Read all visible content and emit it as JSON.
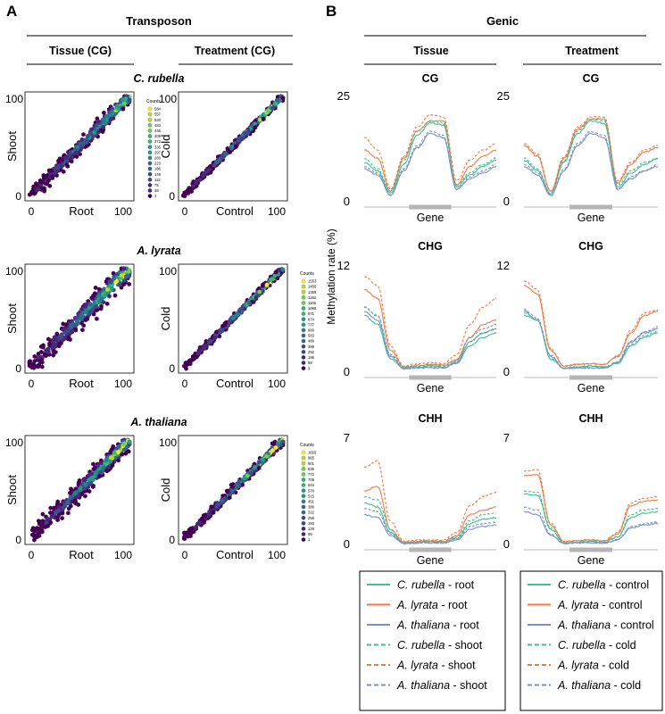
{
  "panel_a": {
    "letter": "A",
    "heading": "Transposon",
    "col_headers": [
      "Tissue (CG)",
      "Treatment (CG)"
    ],
    "species_titles": [
      "C. rubella",
      "A. lyrata",
      "A. thaliana"
    ],
    "tissue_x_label": "Root",
    "tissue_y_label": "Shoot",
    "treatment_x_label": "Control",
    "treatment_y_label": "Cold",
    "counts_title": "Counts"
  },
  "panel_b": {
    "letter": "B",
    "heading": "Genic",
    "col_headers": [
      "Tissue",
      "Treatment"
    ],
    "y_axis_label": "Methylation rate (%)",
    "gene_label": "Gene"
  },
  "legend_tissue": [
    {
      "species": "C. rubella",
      "suffix": " - root",
      "color": "#3dbf8f",
      "dashed": false
    },
    {
      "species": "A. lyrata",
      "suffix": " - root",
      "color": "#f07a45",
      "dashed": false
    },
    {
      "species": "A. thaliana",
      "suffix": " - root",
      "color": "#7890d0",
      "dashed": false
    },
    {
      "species": "C. rubella",
      "suffix": " - shoot",
      "color": "#3dbf8f",
      "dashed": true
    },
    {
      "species": "A. lyrata",
      "suffix": " - shoot",
      "color": "#f07a45",
      "dashed": true
    },
    {
      "species": "A. thaliana",
      "suffix": " - shoot",
      "color": "#7890d0",
      "dashed": true
    }
  ],
  "legend_treatment": [
    {
      "species": "C. rubella",
      "suffix": " - control",
      "color": "#3dbf8f",
      "dashed": false
    },
    {
      "species": "A. lyrata",
      "suffix": " - control",
      "color": "#f07a45",
      "dashed": false
    },
    {
      "species": "A. thaliana",
      "suffix": " - control",
      "color": "#7890d0",
      "dashed": false
    },
    {
      "species": "C. rubella",
      "suffix": " - cold",
      "color": "#3dbf8f",
      "dashed": true
    },
    {
      "species": "A. lyrata",
      "suffix": " - cold",
      "color": "#f07a45",
      "dashed": true
    },
    {
      "species": "A. thaliana",
      "suffix": " - cold",
      "color": "#7890d0",
      "dashed": true
    }
  ],
  "chart_data": [
    {
      "type": "heatmap",
      "subtype": "hexbin",
      "species": "C. rubella",
      "comparison": "tissue",
      "xlabel": "Root",
      "ylabel": "Shoot",
      "xlim": [
        0,
        100
      ],
      "ylim": [
        0,
        100
      ],
      "x_ticks": [
        0,
        100
      ],
      "y_ticks": [
        0,
        100
      ],
      "spread": 7,
      "counts_legend": [
        "584",
        "557",
        "520",
        "483",
        "446",
        "409",
        "372",
        "335",
        "297",
        "260",
        "223",
        "186",
        "149",
        "112",
        "75",
        "38",
        "1"
      ]
    },
    {
      "type": "heatmap",
      "subtype": "hexbin",
      "species": "C. rubella",
      "comparison": "treatment",
      "xlabel": "Control",
      "ylabel": "Cold",
      "xlim": [
        0,
        100
      ],
      "ylim": [
        0,
        100
      ],
      "x_ticks": [
        0,
        100
      ],
      "y_ticks": [
        0,
        100
      ],
      "spread": 3
    },
    {
      "type": "heatmap",
      "subtype": "hexbin",
      "species": "A. lyrata",
      "comparison": "tissue",
      "xlabel": "Root",
      "ylabel": "Shoot",
      "xlim": [
        0,
        100
      ],
      "ylim": [
        0,
        100
      ],
      "x_ticks": [
        0,
        100
      ],
      "y_ticks": [
        0,
        100
      ],
      "spread": 10
    },
    {
      "type": "heatmap",
      "subtype": "hexbin",
      "species": "A. lyrata",
      "comparison": "treatment",
      "xlabel": "Control",
      "ylabel": "Cold",
      "xlim": [
        0,
        100
      ],
      "ylim": [
        0,
        100
      ],
      "x_ticks": [
        0,
        100
      ],
      "y_ticks": [
        0,
        100
      ],
      "spread": 3,
      "counts_legend": [
        "1553",
        "1456",
        "1359",
        "1262",
        "1165",
        "1068",
        "971",
        "874",
        "777",
        "680",
        "583",
        "486",
        "389",
        "292",
        "195",
        "98",
        "1"
      ]
    },
    {
      "type": "heatmap",
      "subtype": "hexbin",
      "species": "A. thaliana",
      "comparison": "tissue",
      "xlabel": "Root",
      "ylabel": "Shoot",
      "xlim": [
        0,
        100
      ],
      "ylim": [
        0,
        100
      ],
      "x_ticks": [
        0,
        100
      ],
      "y_ticks": [
        0,
        100
      ],
      "spread": 8
    },
    {
      "type": "heatmap",
      "subtype": "hexbin",
      "species": "A. thaliana",
      "comparison": "treatment",
      "xlabel": "Control",
      "ylabel": "Cold",
      "xlim": [
        0,
        100
      ],
      "ylim": [
        0,
        100
      ],
      "x_ticks": [
        0,
        100
      ],
      "y_ticks": [
        0,
        100
      ],
      "spread": 4,
      "counts_legend": [
        "1029",
        "965",
        "901",
        "836",
        "772",
        "708",
        "644",
        "579",
        "515",
        "451",
        "386",
        "322",
        "258",
        "193",
        "129",
        "65",
        "1"
      ]
    },
    {
      "type": "line",
      "context": "CG",
      "comparison": "tissue",
      "ylim": [
        0,
        25
      ],
      "y_ticks": [
        0,
        25
      ],
      "x": [
        0,
        10,
        20,
        30,
        40,
        50,
        60,
        70,
        80,
        90,
        100
      ],
      "series": [
        {
          "name": "C. rubella - root",
          "color": "#3dbf8f",
          "dashed": false,
          "values": [
            9.5,
            7.5,
            2.0,
            9.0,
            16.0,
            19.0,
            18.5,
            3.5,
            6.5,
            8.5,
            10.0
          ]
        },
        {
          "name": "A. lyrata - root",
          "color": "#f07a45",
          "dashed": false,
          "values": [
            12.5,
            10.5,
            2.5,
            10.5,
            17.0,
            19.5,
            19.5,
            4.0,
            8.5,
            11.0,
            12.5
          ]
        },
        {
          "name": "A. thaliana - root",
          "color": "#7890d0",
          "dashed": false,
          "values": [
            8.0,
            6.5,
            1.5,
            7.5,
            13.0,
            16.5,
            15.5,
            3.0,
            5.5,
            7.0,
            8.5
          ]
        },
        {
          "name": "C. rubella - shoot",
          "color": "#3dbf8f",
          "dashed": true,
          "values": [
            10.5,
            8.0,
            2.5,
            10.0,
            17.0,
            19.5,
            19.0,
            4.0,
            7.0,
            9.0,
            10.5
          ]
        },
        {
          "name": "A. lyrata - shoot",
          "color": "#f07a45",
          "dashed": true,
          "values": [
            15.5,
            12.5,
            3.0,
            11.0,
            18.0,
            21.0,
            20.5,
            5.0,
            10.0,
            12.5,
            14.0
          ]
        },
        {
          "name": "A. thaliana - shoot",
          "color": "#7890d0",
          "dashed": true,
          "values": [
            8.5,
            7.0,
            1.5,
            8.0,
            13.5,
            17.0,
            16.0,
            3.0,
            6.0,
            7.5,
            9.0
          ]
        }
      ]
    },
    {
      "type": "line",
      "context": "CG",
      "comparison": "treatment",
      "ylim": [
        0,
        25
      ],
      "y_ticks": [
        0,
        25
      ],
      "x": [
        0,
        10,
        20,
        30,
        40,
        50,
        60,
        70,
        80,
        90,
        100
      ],
      "series": [
        {
          "name": "C. rubella - control",
          "color": "#3dbf8f",
          "dashed": false,
          "values": [
            10.0,
            7.5,
            2.0,
            9.5,
            16.5,
            19.5,
            19.0,
            3.5,
            7.0,
            9.0,
            10.5
          ]
        },
        {
          "name": "A. lyrata - control",
          "color": "#f07a45",
          "dashed": false,
          "values": [
            13.5,
            11.0,
            2.5,
            10.5,
            17.5,
            20.0,
            20.0,
            4.5,
            9.0,
            12.0,
            13.0
          ]
        },
        {
          "name": "A. thaliana - control",
          "color": "#7890d0",
          "dashed": false,
          "values": [
            8.5,
            6.5,
            1.5,
            7.5,
            13.5,
            16.5,
            15.5,
            3.0,
            5.5,
            7.5,
            8.5
          ]
        },
        {
          "name": "C. rubella - cold",
          "color": "#3dbf8f",
          "dashed": true,
          "values": [
            10.5,
            8.0,
            2.0,
            10.0,
            17.0,
            20.0,
            19.5,
            4.0,
            7.5,
            9.5,
            10.5
          ]
        },
        {
          "name": "A. lyrata - cold",
          "color": "#f07a45",
          "dashed": true,
          "values": [
            14.0,
            11.5,
            2.5,
            11.0,
            18.0,
            20.5,
            20.5,
            5.0,
            9.5,
            12.5,
            13.5
          ]
        },
        {
          "name": "A. thaliana - cold",
          "color": "#7890d0",
          "dashed": true,
          "values": [
            9.0,
            7.0,
            1.5,
            8.0,
            14.0,
            17.0,
            16.0,
            3.0,
            6.0,
            7.5,
            9.0
          ]
        }
      ]
    },
    {
      "type": "line",
      "context": "CHG",
      "comparison": "tissue",
      "ylim": [
        0,
        12
      ],
      "y_ticks": [
        0,
        12
      ],
      "x": [
        0,
        10,
        20,
        30,
        40,
        50,
        60,
        70,
        80,
        90,
        100
      ],
      "series": [
        {
          "name": "C. rubella - root",
          "color": "#3dbf8f",
          "dashed": false,
          "values": [
            6.5,
            5.5,
            1.5,
            0.5,
            0.6,
            0.7,
            0.6,
            1.0,
            3.0,
            4.0,
            4.5
          ]
        },
        {
          "name": "A. lyrata - root",
          "color": "#f07a45",
          "dashed": false,
          "values": [
            9.5,
            8.5,
            2.5,
            0.6,
            0.8,
            0.9,
            0.8,
            1.5,
            4.0,
            5.5,
            6.0
          ]
        },
        {
          "name": "A. thaliana - root",
          "color": "#7890d0",
          "dashed": false,
          "values": [
            7.0,
            6.0,
            1.8,
            0.4,
            0.5,
            0.5,
            0.5,
            1.1,
            3.5,
            4.5,
            5.0
          ]
        },
        {
          "name": "C. rubella - shoot",
          "color": "#3dbf8f",
          "dashed": true,
          "values": [
            7.5,
            6.5,
            2.0,
            0.6,
            0.7,
            0.8,
            0.7,
            1.3,
            3.5,
            4.5,
            5.0
          ]
        },
        {
          "name": "A. lyrata - shoot",
          "color": "#f07a45",
          "dashed": true,
          "values": [
            11.0,
            10.0,
            3.0,
            0.7,
            1.0,
            1.1,
            1.0,
            2.0,
            5.5,
            7.5,
            8.5
          ]
        },
        {
          "name": "A. thaliana - shoot",
          "color": "#7890d0",
          "dashed": true,
          "values": [
            7.5,
            6.5,
            2.0,
            0.4,
            0.5,
            0.6,
            0.5,
            1.2,
            4.0,
            5.0,
            5.5
          ]
        }
      ]
    },
    {
      "type": "line",
      "context": "CHG",
      "comparison": "treatment",
      "ylim": [
        0,
        12
      ],
      "y_ticks": [
        0,
        12
      ],
      "x": [
        0,
        10,
        20,
        30,
        40,
        50,
        60,
        70,
        80,
        90,
        100
      ],
      "series": [
        {
          "name": "C. rubella - control",
          "color": "#3dbf8f",
          "dashed": false,
          "values": [
            6.5,
            6.0,
            1.5,
            0.5,
            0.6,
            0.7,
            0.6,
            1.0,
            3.0,
            4.0,
            4.5
          ]
        },
        {
          "name": "A. lyrata - control",
          "color": "#f07a45",
          "dashed": false,
          "values": [
            10.0,
            9.0,
            2.5,
            0.7,
            0.9,
            1.0,
            0.9,
            1.8,
            4.5,
            6.5,
            7.0
          ]
        },
        {
          "name": "A. thaliana - control",
          "color": "#7890d0",
          "dashed": false,
          "values": [
            7.0,
            6.0,
            1.8,
            0.4,
            0.5,
            0.5,
            0.5,
            1.1,
            3.5,
            4.5,
            5.0
          ]
        },
        {
          "name": "C. rubella - cold",
          "color": "#3dbf8f",
          "dashed": true,
          "values": [
            6.8,
            6.0,
            1.6,
            0.5,
            0.6,
            0.7,
            0.6,
            1.1,
            3.2,
            4.2,
            4.7
          ]
        },
        {
          "name": "A. lyrata - cold",
          "color": "#f07a45",
          "dashed": true,
          "values": [
            10.5,
            9.5,
            2.7,
            0.7,
            0.9,
            1.0,
            0.9,
            1.9,
            4.8,
            6.8,
            7.2
          ]
        },
        {
          "name": "A. thaliana - cold",
          "color": "#7890d0",
          "dashed": true,
          "values": [
            7.2,
            6.2,
            1.9,
            0.4,
            0.5,
            0.5,
            0.5,
            1.2,
            3.6,
            4.6,
            5.2
          ]
        }
      ]
    },
    {
      "type": "line",
      "context": "CHH",
      "comparison": "tissue",
      "ylim": [
        0,
        7
      ],
      "y_ticks": [
        0,
        7
      ],
      "x": [
        0,
        10,
        20,
        30,
        40,
        50,
        60,
        70,
        80,
        90,
        100
      ],
      "series": [
        {
          "name": "C. rubella - root",
          "color": "#3dbf8f",
          "dashed": false,
          "values": [
            2.8,
            2.5,
            0.8,
            0.1,
            0.15,
            0.2,
            0.15,
            0.4,
            1.4,
            1.7,
            1.8
          ]
        },
        {
          "name": "A. lyrata - root",
          "color": "#f07a45",
          "dashed": false,
          "values": [
            3.6,
            3.9,
            1.0,
            0.15,
            0.2,
            0.25,
            0.2,
            0.6,
            2.0,
            2.3,
            2.5
          ]
        },
        {
          "name": "A. thaliana - root",
          "color": "#7890d0",
          "dashed": false,
          "values": [
            2.0,
            1.8,
            0.6,
            0.05,
            0.1,
            0.1,
            0.1,
            0.3,
            1.0,
            1.2,
            1.3
          ]
        },
        {
          "name": "C. rubella - shoot",
          "color": "#3dbf8f",
          "dashed": true,
          "values": [
            3.2,
            3.0,
            1.0,
            0.1,
            0.15,
            0.2,
            0.15,
            0.5,
            1.6,
            2.0,
            2.1
          ]
        },
        {
          "name": "A. lyrata - shoot",
          "color": "#f07a45",
          "dashed": true,
          "values": [
            5.2,
            5.6,
            1.5,
            0.2,
            0.3,
            0.3,
            0.3,
            0.8,
            2.6,
            3.2,
            3.5
          ]
        },
        {
          "name": "A. thaliana - shoot",
          "color": "#7890d0",
          "dashed": true,
          "values": [
            2.4,
            2.2,
            0.7,
            0.05,
            0.1,
            0.1,
            0.1,
            0.35,
            1.2,
            1.4,
            1.5
          ]
        }
      ]
    },
    {
      "type": "line",
      "context": "CHH",
      "comparison": "treatment",
      "ylim": [
        0,
        7
      ],
      "y_ticks": [
        0,
        7
      ],
      "x": [
        0,
        10,
        20,
        30,
        40,
        50,
        60,
        70,
        80,
        90,
        100
      ],
      "series": [
        {
          "name": "C. rubella - control",
          "color": "#3dbf8f",
          "dashed": false,
          "values": [
            3.4,
            3.3,
            1.0,
            0.1,
            0.15,
            0.2,
            0.15,
            0.5,
            1.8,
            2.1,
            2.2
          ]
        },
        {
          "name": "A. lyrata - control",
          "color": "#f07a45",
          "dashed": false,
          "values": [
            4.6,
            4.7,
            1.3,
            0.2,
            0.25,
            0.3,
            0.25,
            0.7,
            2.6,
            2.9,
            3.0
          ]
        },
        {
          "name": "A. thaliana - control",
          "color": "#7890d0",
          "dashed": false,
          "values": [
            2.2,
            2.0,
            0.6,
            0.05,
            0.1,
            0.1,
            0.1,
            0.3,
            1.1,
            1.3,
            1.4
          ]
        },
        {
          "name": "C. rubella - cold",
          "color": "#3dbf8f",
          "dashed": true,
          "values": [
            3.6,
            3.5,
            1.1,
            0.1,
            0.15,
            0.2,
            0.15,
            0.5,
            2.0,
            2.3,
            2.4
          ]
        },
        {
          "name": "A. lyrata - cold",
          "color": "#f07a45",
          "dashed": true,
          "values": [
            4.9,
            5.0,
            1.4,
            0.2,
            0.25,
            0.3,
            0.25,
            0.8,
            2.8,
            3.1,
            3.2
          ]
        },
        {
          "name": "A. thaliana - cold",
          "color": "#7890d0",
          "dashed": true,
          "values": [
            2.5,
            2.3,
            0.7,
            0.05,
            0.1,
            0.1,
            0.1,
            0.35,
            1.2,
            1.4,
            1.5
          ]
        }
      ]
    }
  ]
}
